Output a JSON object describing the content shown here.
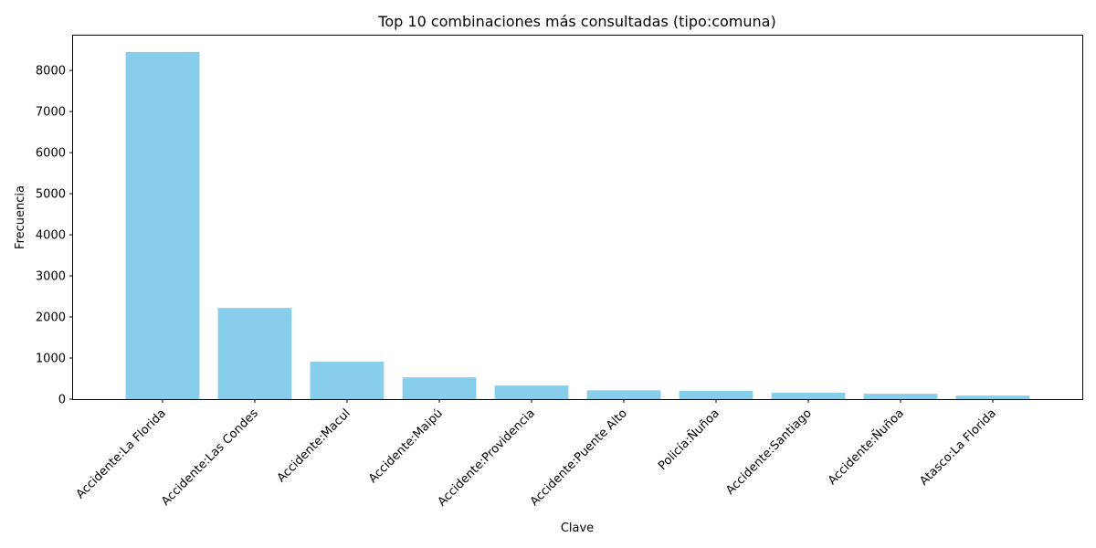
{
  "chart_data": {
    "type": "bar",
    "title": "Top 10 combinaciones más consultadas (tipo:comuna)",
    "xlabel": "Clave",
    "ylabel": "Frecuencia",
    "categories": [
      "Accidente:La Florida",
      "Accidente:Las Condes",
      "Accidente:Macul",
      "Accidente:Maipú",
      "Accidente:Providencia",
      "Accidente:Puente Alto",
      "Policía:Ñuñoa",
      "Accidente:Santiago",
      "Accidente:Ñuñoa",
      "Atasco:La Florida"
    ],
    "values": [
      8450,
      2220,
      910,
      530,
      330,
      215,
      200,
      155,
      130,
      85
    ],
    "ylim": [
      0,
      8870
    ],
    "yticks": [
      0,
      1000,
      2000,
      3000,
      4000,
      5000,
      6000,
      7000,
      8000
    ],
    "bar_color": "#87ceeb",
    "grid": false,
    "legend": "none"
  }
}
